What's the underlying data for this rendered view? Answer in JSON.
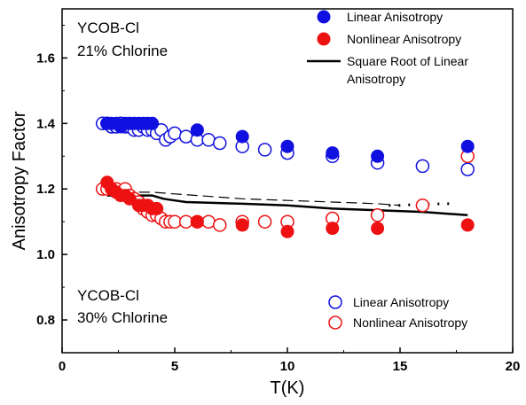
{
  "chart_data": {
    "type": "scatter",
    "title": "",
    "xlabel": "T(K)",
    "ylabel": "Anisotropy Factor",
    "xlim": [
      0,
      20
    ],
    "ylim": [
      0.7,
      1.75
    ],
    "xticks": [
      0,
      5,
      10,
      15,
      20
    ],
    "yticks": [
      0.8,
      1.0,
      1.2,
      1.4,
      1.6
    ],
    "grid": false,
    "annotations": [
      {
        "lines": [
          "YCOB-Cl",
          "21% Chlorine"
        ],
        "position": "top-left"
      },
      {
        "lines": [
          "YCOB-Cl",
          "30% Chlorine"
        ],
        "position": "bottom-left"
      }
    ],
    "legends": [
      {
        "position": "top-right",
        "entries": [
          {
            "label": [
              "Linear Anisotropy"
            ],
            "series": "linear-21"
          },
          {
            "label": [
              "Nonlinear Anisotropy"
            ],
            "series": "nonlinear-21"
          },
          {
            "label": [
              "Square Root of Linear",
              "Anisotropy"
            ],
            "series": "sqrt-21"
          }
        ]
      },
      {
        "position": "bottom-right",
        "entries": [
          {
            "label": [
              "Linear Anisotropy"
            ],
            "series": "linear-30"
          },
          {
            "label": [
              "Nonlinear Anisotropy"
            ],
            "series": "nonlinear-30"
          }
        ]
      }
    ],
    "series": [
      {
        "name": "Linear Anisotropy",
        "id": "linear-21",
        "marker": "filled-circle",
        "color": "#1010e0",
        "x": [
          2.0,
          2.2,
          2.4,
          2.6,
          2.8,
          3.0,
          3.2,
          3.4,
          3.6,
          3.8,
          4.0,
          6.0,
          8.0,
          10.0,
          12.0,
          14.0,
          18.0
        ],
        "y": [
          1.4,
          1.4,
          1.4,
          1.39,
          1.4,
          1.4,
          1.4,
          1.4,
          1.4,
          1.4,
          1.4,
          1.38,
          1.36,
          1.33,
          1.31,
          1.3,
          1.33
        ]
      },
      {
        "name": "Nonlinear Anisotropy",
        "id": "nonlinear-21",
        "marker": "filled-circle",
        "color": "#ee1111",
        "x": [
          2.0,
          2.2,
          2.4,
          2.6,
          2.8,
          3.0,
          3.4,
          3.6,
          3.8,
          4.0,
          4.2,
          6.0,
          8.0,
          10.0,
          12.0,
          14.0,
          18.0
        ],
        "y": [
          1.22,
          1.2,
          1.19,
          1.18,
          1.18,
          1.17,
          1.15,
          1.15,
          1.15,
          1.14,
          1.14,
          1.1,
          1.09,
          1.07,
          1.08,
          1.08,
          1.09
        ]
      },
      {
        "name": "Square Root of Linear Anisotropy",
        "id": "sqrt-21",
        "marker": "line",
        "color": "#000000",
        "x": [
          2.0,
          3.0,
          4.0,
          4.5,
          5.0,
          5.5,
          8.0,
          10.0,
          12.0,
          14.0,
          16.0,
          18.0
        ],
        "y": [
          1.18,
          1.18,
          1.18,
          1.17,
          1.165,
          1.16,
          1.155,
          1.15,
          1.14,
          1.135,
          1.13,
          1.12
        ]
      },
      {
        "name": "Linear Anisotropy",
        "id": "linear-30",
        "marker": "open-circle",
        "color": "#1010e0",
        "x": [
          1.8,
          2.0,
          2.2,
          2.4,
          2.6,
          2.8,
          3.0,
          3.2,
          3.4,
          3.6,
          3.8,
          4.0,
          4.2,
          4.4,
          4.6,
          4.8,
          5.0,
          5.5,
          6.0,
          6.5,
          7.0,
          8.0,
          9.0,
          10.0,
          12.0,
          14.0,
          16.0,
          18.0
        ],
        "y": [
          1.4,
          1.4,
          1.39,
          1.39,
          1.4,
          1.39,
          1.39,
          1.38,
          1.38,
          1.39,
          1.38,
          1.38,
          1.37,
          1.38,
          1.35,
          1.36,
          1.37,
          1.36,
          1.35,
          1.35,
          1.34,
          1.33,
          1.32,
          1.31,
          1.3,
          1.28,
          1.27,
          1.26
        ]
      },
      {
        "name": "Nonlinear Anisotropy",
        "id": "nonlinear-30",
        "marker": "open-circle",
        "color": "#ee1111",
        "x": [
          1.8,
          2.0,
          2.2,
          2.4,
          2.6,
          2.8,
          3.0,
          3.2,
          3.4,
          3.6,
          3.8,
          4.0,
          4.2,
          4.4,
          4.6,
          4.8,
          5.0,
          5.5,
          6.0,
          6.5,
          7.0,
          8.0,
          9.0,
          10.0,
          12.0,
          14.0,
          16.0,
          18.0
        ],
        "y": [
          1.2,
          1.2,
          1.2,
          1.2,
          1.19,
          1.2,
          1.18,
          1.17,
          1.16,
          1.14,
          1.13,
          1.12,
          1.12,
          1.11,
          1.1,
          1.1,
          1.1,
          1.1,
          1.1,
          1.1,
          1.09,
          1.1,
          1.1,
          1.1,
          1.11,
          1.12,
          1.15,
          1.3
        ]
      },
      {
        "name": "",
        "id": "sqrt-30",
        "marker": "dash-line",
        "color": "#000000",
        "x": [
          2.0,
          3.0,
          4.0,
          5.0,
          6.0,
          8.0,
          10.0,
          12.0,
          14.0,
          15.0
        ],
        "y": [
          1.19,
          1.19,
          1.19,
          1.185,
          1.18,
          1.17,
          1.165,
          1.16,
          1.155,
          1.15
        ]
      },
      {
        "name": "",
        "id": "dots-30",
        "marker": "dot-line",
        "color": "#000000",
        "x": [
          14.5,
          15.0,
          15.5,
          16.0,
          16.5,
          17.0,
          17.5
        ],
        "y": [
          1.15,
          1.15,
          1.152,
          1.153,
          1.154,
          1.155,
          1.155
        ]
      }
    ]
  }
}
